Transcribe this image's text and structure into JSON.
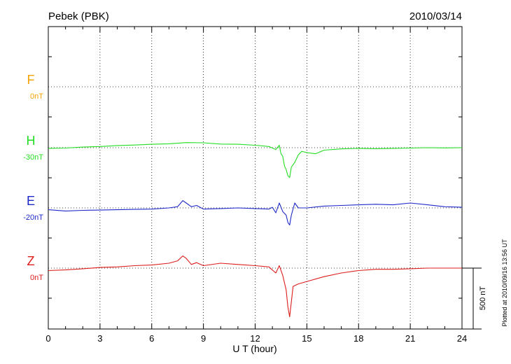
{
  "chart_data": {
    "type": "line",
    "title": "Pebek (PBK)",
    "date": "2010/03/14",
    "xlabel": "U T (hour)",
    "xlim": [
      0,
      24
    ],
    "xticks": [
      0,
      3,
      6,
      9,
      12,
      15,
      18,
      21,
      24
    ],
    "grid": true,
    "scale_bar": {
      "label": "500 nT",
      "value_nT": 500
    },
    "plotted_note": "Plotted at 2010/09/16 13:56 UT",
    "series": [
      {
        "name": "F",
        "offset_label": "0nT",
        "color": "#f5a300",
        "values": []
      },
      {
        "name": "H",
        "offset_label": "-30nT",
        "color": "#22dd22",
        "x": [
          0,
          1,
          2,
          3,
          4,
          5,
          6,
          7,
          8,
          9,
          10,
          11,
          12,
          12.8,
          13.2,
          13.4,
          13.5,
          13.6,
          13.7,
          13.8,
          13.9,
          14.0,
          14.1,
          14.3,
          14.5,
          14.7,
          15.0,
          15.5,
          16,
          17,
          18,
          19,
          20,
          21,
          22,
          23,
          24
        ],
        "values": [
          -5,
          -3,
          5,
          10,
          18,
          22,
          28,
          32,
          42,
          40,
          30,
          28,
          20,
          10,
          -15,
          20,
          -50,
          -70,
          -150,
          -180,
          -230,
          -245,
          -160,
          -120,
          -60,
          -30,
          -40,
          -50,
          -20,
          -10,
          -5,
          -8,
          -5,
          -3,
          0,
          -2,
          0
        ]
      },
      {
        "name": "E",
        "offset_label": "-20nT",
        "color": "#1c28c8",
        "x": [
          0,
          1,
          2,
          3,
          4,
          5,
          6,
          7,
          7.5,
          7.8,
          8.0,
          8.3,
          8.6,
          9,
          10,
          11,
          12,
          12.8,
          13.0,
          13.2,
          13.4,
          13.6,
          13.8,
          13.9,
          14.0,
          14.1,
          14.3,
          14.5,
          15,
          16,
          17,
          18,
          19,
          20,
          21,
          22,
          23,
          24
        ],
        "values": [
          -15,
          -25,
          -20,
          -18,
          -15,
          -12,
          -10,
          0,
          10,
          60,
          40,
          10,
          20,
          -10,
          -5,
          0,
          -5,
          -10,
          5,
          -40,
          40,
          -30,
          -60,
          -120,
          -140,
          -60,
          40,
          0,
          0,
          15,
          20,
          25,
          30,
          25,
          40,
          25,
          10,
          5
        ]
      },
      {
        "name": "Z",
        "offset_label": "0nT",
        "color": "#dd1c1c",
        "x": [
          0,
          1,
          2,
          3,
          4,
          5,
          6,
          7,
          7.5,
          7.8,
          8.0,
          8.3,
          8.6,
          9,
          10,
          11,
          12,
          12.8,
          13.2,
          13.4,
          13.6,
          13.8,
          13.9,
          14.0,
          14.2,
          14.5,
          15,
          16,
          17,
          18,
          19,
          20,
          21,
          22,
          23,
          24
        ],
        "values": [
          -20,
          -15,
          -5,
          5,
          10,
          20,
          25,
          40,
          60,
          100,
          80,
          30,
          45,
          20,
          40,
          30,
          20,
          10,
          -40,
          20,
          -60,
          -180,
          -320,
          -400,
          -150,
          -130,
          -110,
          -70,
          -40,
          -20,
          -10,
          -10,
          -5,
          0,
          0,
          0
        ]
      }
    ]
  }
}
